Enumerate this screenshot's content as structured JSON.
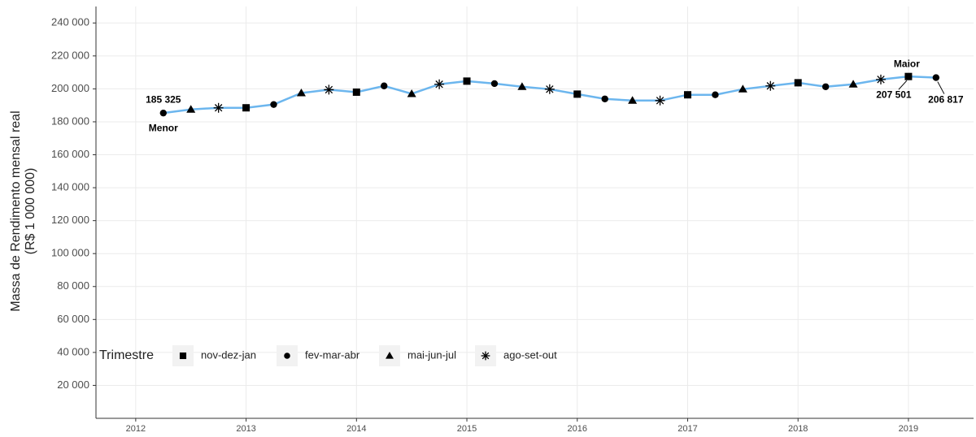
{
  "chart_data": {
    "type": "line",
    "ylabel": [
      "Massa de Rendimento mensal real",
      "(R$ 1 000 000)"
    ],
    "x": [
      2012.25,
      2012.5,
      2012.75,
      2013.0,
      2013.25,
      2013.5,
      2013.75,
      2014.0,
      2014.25,
      2014.5,
      2014.75,
      2015.0,
      2015.25,
      2015.5,
      2015.75,
      2016.0,
      2016.25,
      2016.5,
      2016.75,
      2017.0,
      2017.25,
      2017.5,
      2017.75,
      2018.0,
      2018.25,
      2018.5,
      2018.75,
      2019.0,
      2019.25
    ],
    "line_color": "#6cb6ee",
    "legend_title": "Trimestre",
    "legend_position": "bottom-left",
    "series": [
      {
        "name": "nov-dez-jan",
        "shape": "square",
        "color": "#000000",
        "values": [
          null,
          null,
          null,
          188500,
          null,
          null,
          null,
          198000,
          null,
          null,
          null,
          204700,
          null,
          null,
          null,
          196800,
          null,
          null,
          null,
          196400,
          null,
          null,
          null,
          203700,
          null,
          null,
          null,
          207501,
          null
        ],
        "value_labels": [
          null,
          null,
          null,
          null,
          null,
          null,
          null,
          null,
          null,
          null,
          null,
          null,
          null,
          null,
          null,
          null,
          null,
          null,
          null,
          null,
          null,
          null,
          null,
          null,
          null,
          null,
          null,
          "207 501",
          null
        ]
      },
      {
        "name": "fev-mar-abr",
        "shape": "circle",
        "color": "#000000",
        "values": [
          185325,
          null,
          null,
          null,
          190500,
          null,
          null,
          null,
          201800,
          null,
          null,
          null,
          203200,
          null,
          null,
          null,
          193900,
          null,
          null,
          null,
          196400,
          null,
          null,
          null,
          201300,
          null,
          null,
          null,
          206817
        ],
        "value_labels": [
          "185 325",
          null,
          null,
          null,
          null,
          null,
          null,
          null,
          null,
          null,
          null,
          null,
          null,
          null,
          null,
          null,
          null,
          null,
          null,
          null,
          null,
          null,
          null,
          null,
          null,
          null,
          null,
          null,
          "206 817"
        ]
      },
      {
        "name": "mai-jun-jul",
        "shape": "triangle",
        "color": "#000000",
        "values": [
          null,
          187500,
          null,
          null,
          null,
          197500,
          null,
          null,
          null,
          197000,
          null,
          null,
          null,
          201300,
          null,
          null,
          null,
          192900,
          null,
          null,
          null,
          199800,
          null,
          null,
          null,
          202800,
          null,
          null,
          null
        ]
      },
      {
        "name": "ago-set-out",
        "shape": "asterisk",
        "color": "#000000",
        "values": [
          null,
          null,
          188500,
          null,
          null,
          null,
          199500,
          null,
          null,
          null,
          202800,
          null,
          null,
          null,
          199800,
          null,
          null,
          null,
          192900,
          null,
          null,
          null,
          201800,
          null,
          null,
          null,
          205700,
          null,
          null
        ]
      }
    ],
    "annotations": [
      {
        "text": "Menor",
        "x": 2012.25,
        "y": 185325
      },
      {
        "text": "Maior",
        "x": 2019.0,
        "y": 207501
      }
    ],
    "xlim": [
      2011.64,
      2019.59
    ],
    "xticks": [
      2012,
      2013,
      2014,
      2015,
      2016,
      2017,
      2018,
      2019
    ],
    "ylim": [
      0,
      250000
    ],
    "yticks": [
      {
        "value": 20000,
        "label": "20 000"
      },
      {
        "value": 40000,
        "label": "40 000"
      },
      {
        "value": 60000,
        "label": "60 000"
      },
      {
        "value": 80000,
        "label": "80 000"
      },
      {
        "value": 100000,
        "label": "100 000"
      },
      {
        "value": 120000,
        "label": "120 000"
      },
      {
        "value": 140000,
        "label": "140 000"
      },
      {
        "value": 160000,
        "label": "160 000"
      },
      {
        "value": 180000,
        "label": "180 000"
      },
      {
        "value": 200000,
        "label": "200 000"
      },
      {
        "value": 220000,
        "label": "220 000"
      },
      {
        "value": 240000,
        "label": "240 000"
      }
    ],
    "grid": true
  }
}
